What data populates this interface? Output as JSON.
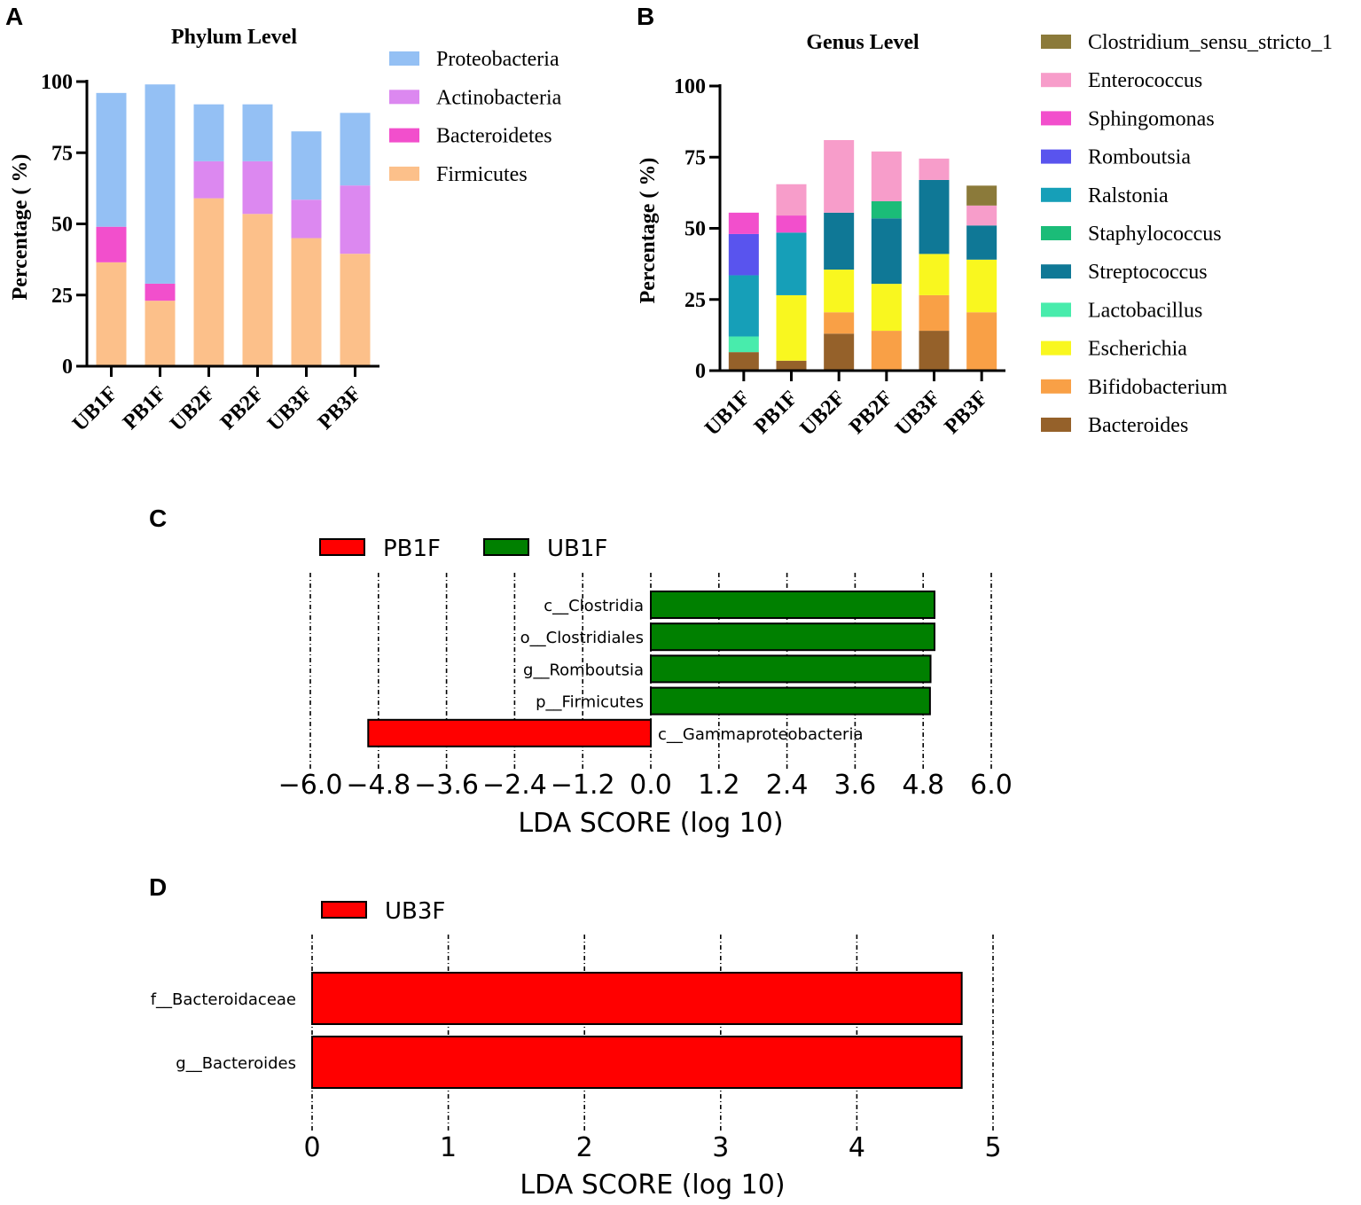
{
  "panel_letters": [
    "A",
    "B",
    "C",
    "D"
  ],
  "chart_data": [
    {
      "id": "A",
      "type": "bar",
      "stacked": true,
      "title": "Phylum Level",
      "ylabel": "Percentage ( %)",
      "xlabel": "",
      "ylim": [
        0,
        100
      ],
      "yticks": [
        0,
        25,
        50,
        75,
        100
      ],
      "categories": [
        "UB1F",
        "PB1F",
        "UB2F",
        "PB2F",
        "UB3F",
        "PB3F"
      ],
      "series": [
        {
          "name": "Firmicutes",
          "color": "#fcc08a",
          "values": [
            36.5,
            23,
            59,
            53.5,
            45,
            39.5
          ]
        },
        {
          "name": "Bacteroidetes",
          "color": "#f24fcc",
          "values": [
            12.5,
            6,
            0,
            0,
            0,
            0
          ]
        },
        {
          "name": "Actinobacteria",
          "color": "#dc88f0",
          "values": [
            0,
            0,
            13,
            18.5,
            13.5,
            24
          ]
        },
        {
          "name": "Proteobacteria",
          "color": "#94c0f4",
          "values": [
            47,
            70,
            20,
            20,
            24,
            25.5
          ]
        }
      ],
      "legend": [
        "Proteobacteria",
        "Actinobacteria",
        "Bacteroidetes",
        "Firmicutes"
      ],
      "legend_position": "right"
    },
    {
      "id": "B",
      "type": "bar",
      "stacked": true,
      "title": "Genus Level",
      "ylabel": "Percentage ( %)",
      "xlabel": "",
      "ylim": [
        0,
        100
      ],
      "yticks": [
        0,
        25,
        50,
        75,
        100
      ],
      "categories": [
        "UB1F",
        "PB1F",
        "UB2F",
        "PB2F",
        "UB3F",
        "PB3F"
      ],
      "series": [
        {
          "name": "Bacteroides",
          "color": "#95612a",
          "values": [
            6.5,
            3.5,
            13,
            0,
            14,
            0
          ]
        },
        {
          "name": "Bifidobacterium",
          "color": "#f9a046",
          "values": [
            0,
            0,
            7.5,
            14,
            12.5,
            20.5
          ]
        },
        {
          "name": "Escherichia",
          "color": "#f9f71f",
          "values": [
            0,
            23,
            15,
            16.5,
            14.5,
            18.5
          ]
        },
        {
          "name": "Lactobacillus",
          "color": "#48ecac",
          "values": [
            5.5,
            0,
            0,
            0,
            0,
            0
          ]
        },
        {
          "name": "Streptococcus",
          "color": "#0f7896",
          "values": [
            0,
            0,
            20,
            23,
            26,
            12
          ]
        },
        {
          "name": "Staphylococcus",
          "color": "#1bbc78",
          "values": [
            0,
            0,
            0,
            6,
            0,
            0
          ]
        },
        {
          "name": "Ralstonia",
          "color": "#169fb8",
          "values": [
            21.5,
            22,
            0,
            0,
            0,
            0
          ]
        },
        {
          "name": "Romboutsia",
          "color": "#5954ee",
          "values": [
            14.5,
            0,
            0,
            0,
            0,
            0
          ]
        },
        {
          "name": "Sphingomonas",
          "color": "#f24fcc",
          "values": [
            7.5,
            6,
            0,
            0,
            0,
            0
          ]
        },
        {
          "name": "Enterococcus",
          "color": "#f79dca",
          "values": [
            0,
            11,
            25.5,
            17.5,
            7.5,
            7
          ]
        },
        {
          "name": "Clostridium_sensu_stricto_1",
          "color": "#8b7a3a",
          "values": [
            0,
            0,
            0,
            0,
            0,
            7
          ]
        }
      ],
      "legend": [
        "Clostridium_sensu_stricto_1",
        "Enterococcus",
        "Sphingomonas",
        "Romboutsia",
        "Ralstonia",
        "Staphylococcus",
        "Streptococcus",
        "Lactobacillus",
        "Escherichia",
        "Bifidobacterium",
        "Bacteroides"
      ],
      "legend_position": "right"
    },
    {
      "id": "C",
      "type": "bar",
      "orientation": "horizontal",
      "title": "",
      "xlabel": "LDA SCORE (log 10)",
      "ylabel": "",
      "xlim": [
        -6.0,
        6.0
      ],
      "xticks": [
        "−6.0",
        "−4.8",
        "−3.6",
        "−2.4",
        "−1.2",
        "0.0",
        "1.2",
        "2.4",
        "3.6",
        "4.8",
        "6.0"
      ],
      "xtick_values": [
        -6.0,
        -4.8,
        -3.6,
        -2.4,
        -1.2,
        0.0,
        1.2,
        2.4,
        3.6,
        4.8,
        6.0
      ],
      "groups": [
        {
          "name": "PB1F",
          "color": "#ff0000"
        },
        {
          "name": "UB1F",
          "color": "#008000"
        }
      ],
      "bars": [
        {
          "label": "c__Clostridia",
          "value": 5.0,
          "group": "UB1F"
        },
        {
          "label": "o__Clostridiales",
          "value": 5.0,
          "group": "UB1F"
        },
        {
          "label": "g__Romboutsia",
          "value": 4.93,
          "group": "UB1F"
        },
        {
          "label": "p__Firmicutes",
          "value": 4.92,
          "group": "UB1F"
        },
        {
          "label": "c__Gammaproteobacteria",
          "value": -4.98,
          "group": "PB1F"
        }
      ],
      "legend_position": "top-left"
    },
    {
      "id": "D",
      "type": "bar",
      "orientation": "horizontal",
      "title": "",
      "xlabel": "LDA SCORE (log 10)",
      "ylabel": "",
      "xlim": [
        0,
        5
      ],
      "xticks": [
        "0",
        "1",
        "2",
        "3",
        "4",
        "5"
      ],
      "xtick_values": [
        0,
        1,
        2,
        3,
        4,
        5
      ],
      "groups": [
        {
          "name": "UB3F",
          "color": "#ff0000"
        }
      ],
      "bars": [
        {
          "label": "f__Bacteroidaceae",
          "value": 4.77,
          "group": "UB3F"
        },
        {
          "label": "g__Bacteroides",
          "value": 4.77,
          "group": "UB3F"
        }
      ],
      "legend_position": "top-left"
    }
  ]
}
